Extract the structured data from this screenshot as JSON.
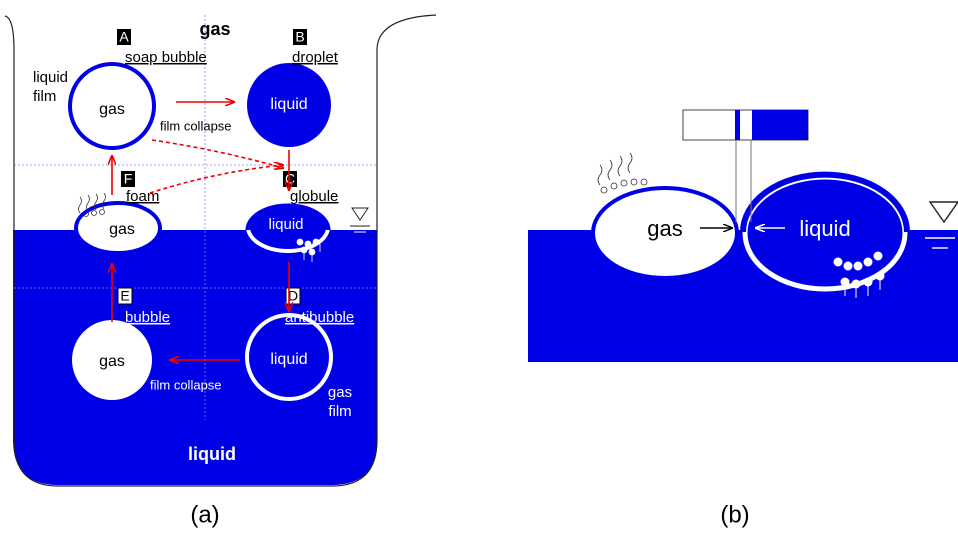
{
  "top_label": "gas",
  "bottom_label": "liquid",
  "states": [
    {
      "letter": "A",
      "name": "soap bubble",
      "inner": "gas"
    },
    {
      "letter": "B",
      "name": "droplet",
      "inner": "liquid"
    },
    {
      "letter": "C",
      "name": "globule",
      "inner": "liquid"
    },
    {
      "letter": "D",
      "name": "antibubble",
      "inner": "liquid"
    },
    {
      "letter": "E",
      "name": "bubble",
      "inner": "gas"
    },
    {
      "letter": "F",
      "name": "foam",
      "inner": "gas"
    }
  ],
  "liquid_film": [
    "liquid",
    "film"
  ],
  "gas_film": [
    "gas",
    "film"
  ],
  "transitions": [
    "film collapse",
    "film collapse"
  ],
  "panel_b": {
    "gas": "gas",
    "liquid": "liquid"
  },
  "captions": [
    "(a)",
    "(b)"
  ]
}
